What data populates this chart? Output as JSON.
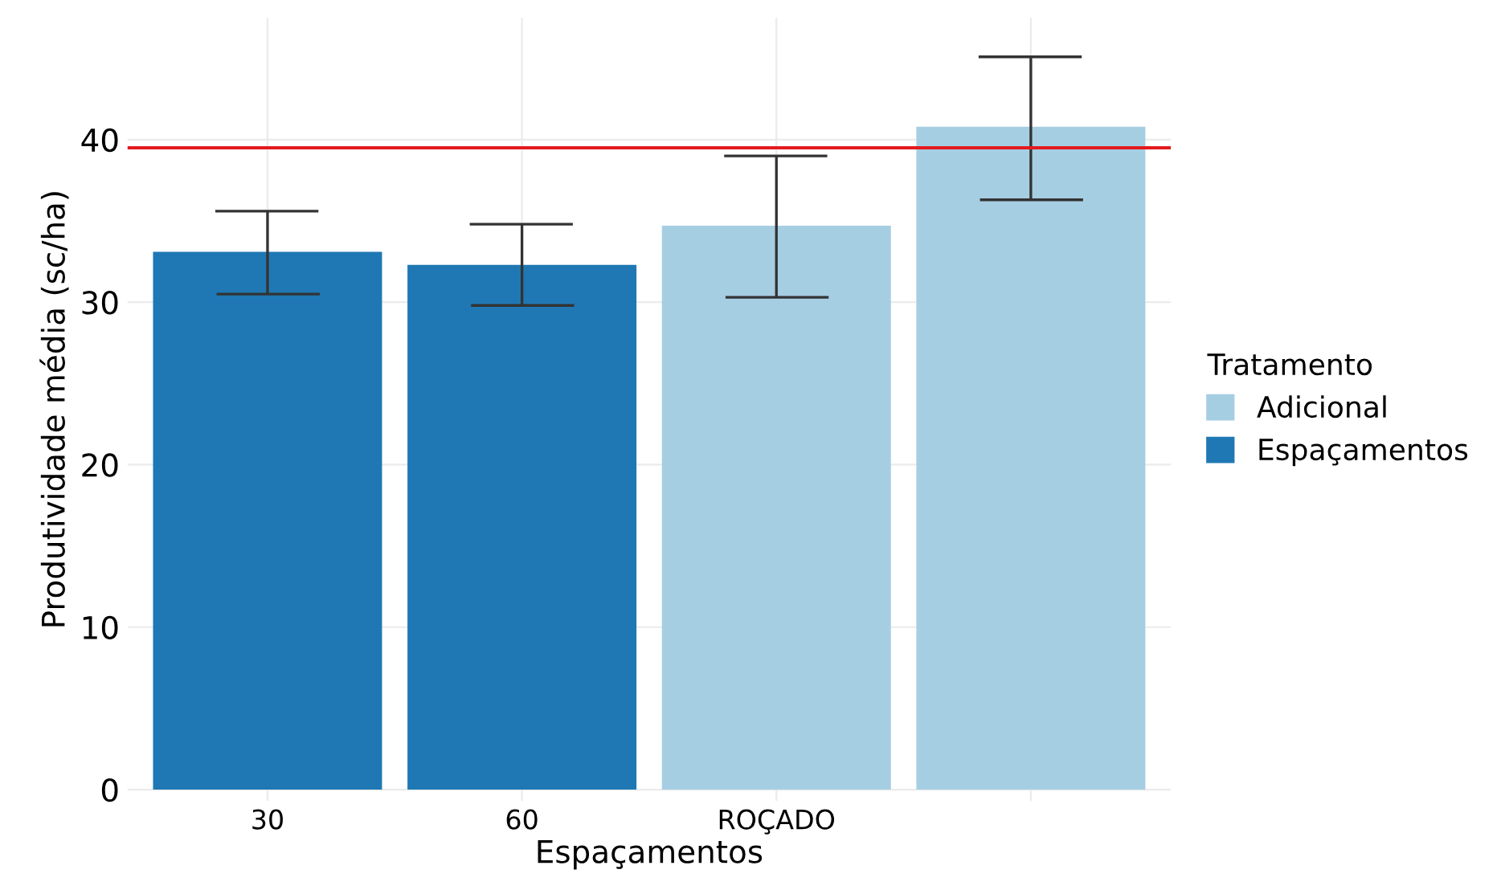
{
  "chart_data": {
    "type": "bar",
    "xlabel": "Espaçamentos",
    "ylabel": "Produtividade média (sc/ha)",
    "legend_title": "Tratamento",
    "categories": [
      "30",
      "60",
      "ROÇADO",
      null
    ],
    "series": [
      {
        "name": "Adicional",
        "color": "#a6cee3",
        "values": [
          null,
          null,
          34.7,
          40.8
        ],
        "errors": [
          null,
          null,
          [
            30.3,
            39.0
          ],
          [
            36.3,
            45.1
          ]
        ]
      },
      {
        "name": "Espaçamentos",
        "color": "#1f78b4",
        "values": [
          33.1,
          32.3,
          null,
          null
        ],
        "errors": [
          [
            30.5,
            35.6
          ],
          [
            29.8,
            34.8
          ],
          null,
          null
        ]
      }
    ],
    "ylim": [
      -0.7,
      47.5
    ],
    "yticks": [
      0,
      10,
      20,
      30,
      40
    ],
    "grid": true,
    "legend": "right",
    "ref_lines": [
      {
        "axis": "y",
        "value": 39.5,
        "color": "#e41a1c"
      }
    ]
  }
}
